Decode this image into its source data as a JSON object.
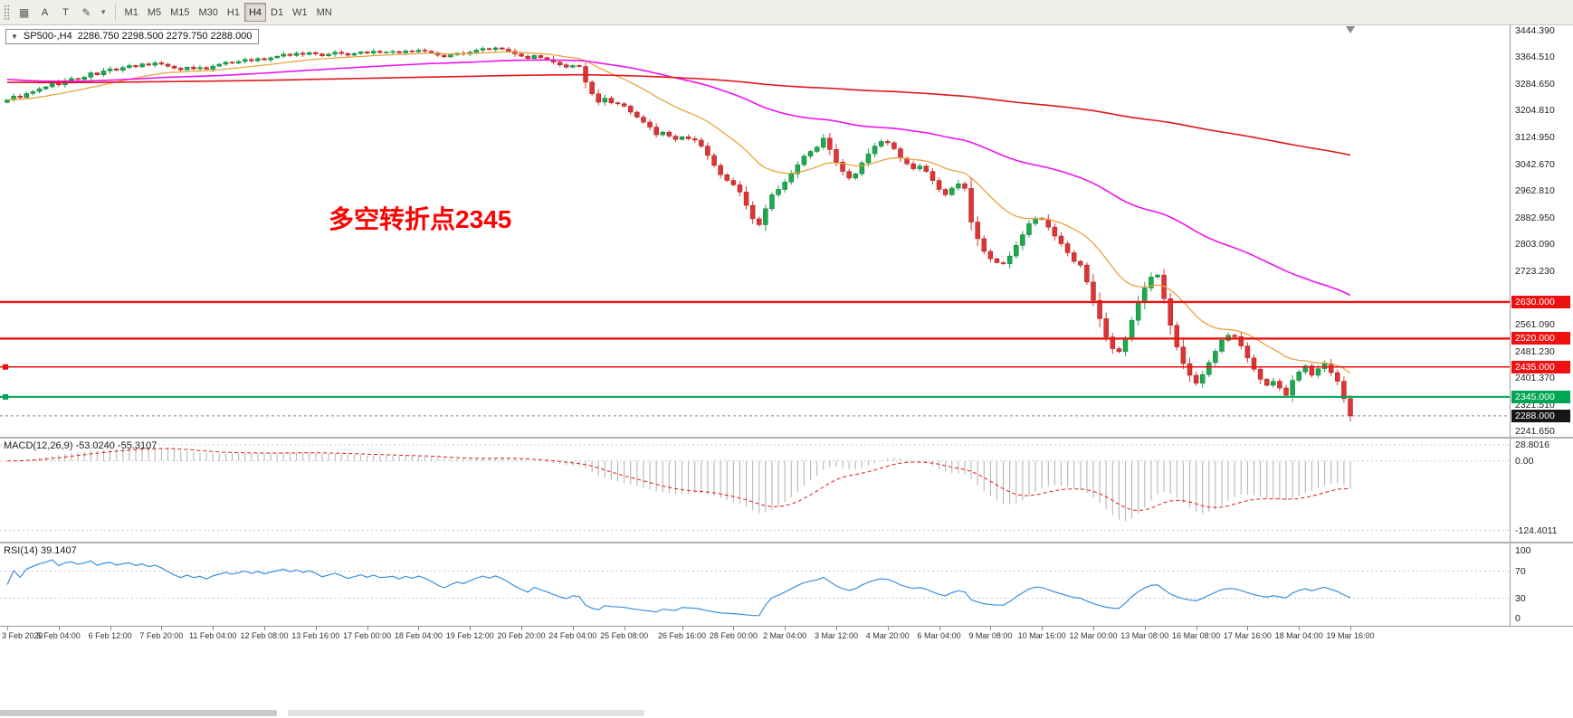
{
  "colors": {
    "up": "#1ea94f",
    "down": "#dd3434",
    "up_border": "#0c7a37",
    "down_border": "#a32222",
    "ma_fast": "#e8a33d",
    "ma_mid": "#f011f0",
    "ma_slow": "#e01818",
    "level_red": "#ee1111",
    "level_green": "#00a651",
    "current_tag_bg": "#161616",
    "macd_hist": "#b6b6b6",
    "macd_signal": "#e01818",
    "rsi_line": "#3c8fdd",
    "annotation": "#ff0000"
  },
  "toolbar": {
    "tools": {
      "a": "A",
      "t": "T"
    },
    "timeframes": [
      "M1",
      "M5",
      "M15",
      "M30",
      "H1",
      "H4",
      "D1",
      "W1",
      "MN"
    ],
    "active_timeframe": "H4"
  },
  "chart": {
    "symbol": "SP500-,H4",
    "ohlc": "2286.750 2298.500 2279.750 2288.000"
  },
  "chart_data": {
    "type": "candlestick",
    "title": "SP500- H4",
    "annotation": "多空转折点2345",
    "ylim": [
      2241.65,
      3444.39
    ],
    "y_axis_labels": [
      "3444.390",
      "3364.510",
      "3284.650",
      "3204.810",
      "3124.950",
      "3042.670",
      "2962.810",
      "2882.950",
      "2803.090",
      "2723.230",
      "2561.090",
      "2481.230",
      "2401.370",
      "2321.510",
      "2241.650"
    ],
    "levels": [
      {
        "price": 2630.0,
        "label": "2630.000",
        "style": "red",
        "width": 2.4,
        "handle": false
      },
      {
        "price": 2520.0,
        "label": "2520.000",
        "style": "red",
        "width": 2.4,
        "handle": false
      },
      {
        "price": 2435.0,
        "label": "2435.000",
        "style": "red",
        "width": 1.5,
        "handle": true
      },
      {
        "price": 2345.0,
        "label": "2345.000",
        "style": "green",
        "width": 2.0,
        "handle": true
      },
      {
        "price": 2288.0,
        "label": "2288.000",
        "style": "current",
        "width": 1.0,
        "handle": false
      }
    ],
    "closes": [
      3237,
      3248,
      3244,
      3256,
      3262,
      3270,
      3276,
      3288,
      3282,
      3295,
      3301,
      3298,
      3305,
      3318,
      3312,
      3324,
      3330,
      3326,
      3334,
      3340,
      3336,
      3345,
      3341,
      3348,
      3344,
      3338,
      3332,
      3327,
      3335,
      3330,
      3334,
      3329,
      3338,
      3344,
      3350,
      3347,
      3352,
      3358,
      3354,
      3361,
      3357,
      3363,
      3368,
      3374,
      3370,
      3377,
      3373,
      3379,
      3375,
      3369,
      3374,
      3380,
      3376,
      3371,
      3376,
      3381,
      3377,
      3383,
      3379,
      3380,
      3382,
      3378,
      3384,
      3381,
      3386,
      3383,
      3378,
      3371,
      3366,
      3372,
      3377,
      3374,
      3380,
      3386,
      3391,
      3388,
      3393,
      3389,
      3383,
      3375,
      3368,
      3361,
      3370,
      3364,
      3358,
      3350,
      3342,
      3335,
      3340,
      3337,
      3290,
      3255,
      3230,
      3242,
      3228,
      3225,
      3218,
      3200,
      3185,
      3170,
      3155,
      3132,
      3140,
      3128,
      3118,
      3126,
      3120,
      3116,
      3098,
      3070,
      3040,
      3012,
      2995,
      2982,
      2960,
      2920,
      2880,
      2862,
      2910,
      2952,
      2968,
      2990,
      3015,
      3042,
      3068,
      3082,
      3095,
      3122,
      3088,
      3050,
      3022,
      3002,
      3015,
      3048,
      3075,
      3098,
      3112,
      3108,
      3090,
      3062,
      3045,
      3030,
      3038,
      3022,
      2995,
      2968,
      2952,
      2972,
      2985,
      2971,
      2870,
      2820,
      2782,
      2760,
      2748,
      2745,
      2768,
      2800,
      2832,
      2865,
      2882,
      2878,
      2855,
      2828,
      2805,
      2778,
      2752,
      2741,
      2690,
      2635,
      2580,
      2525,
      2490,
      2481,
      2520,
      2575,
      2628,
      2672,
      2705,
      2711,
      2640,
      2560,
      2495,
      2445,
      2410,
      2386,
      2412,
      2448,
      2482,
      2515,
      2530,
      2526,
      2498,
      2462,
      2428,
      2398,
      2380,
      2392,
      2372,
      2350,
      2395,
      2420,
      2438,
      2410,
      2430,
      2445,
      2418,
      2392,
      2340,
      2288
    ],
    "moving_averages": [
      {
        "name": "fast",
        "period": 20,
        "color_key": "ma_fast"
      },
      {
        "name": "mid",
        "period": 80,
        "seed": 3300,
        "color_key": "ma_mid"
      },
      {
        "name": "slow",
        "period": 400,
        "seed": 3290,
        "color_key": "ma_slow"
      }
    ],
    "indicators": {
      "macd": {
        "label": "MACD(12,26,9) -53.0240 -55.3107",
        "fast": 12,
        "slow": 26,
        "signal": 9,
        "axis_labels": [
          "28.8016",
          "0.00",
          "-124.4011"
        ]
      },
      "rsi": {
        "label": "RSI(14) 39.1407",
        "period": 14,
        "value": 39.1407,
        "axis_labels": [
          "100",
          "70",
          "30",
          "0"
        ],
        "levels": [
          70,
          30
        ]
      }
    },
    "time_labels": [
      "3 Feb 2020",
      "5 Feb 04:00",
      "6 Feb 12:00",
      "7 Feb 20:00",
      "11 Feb 04:00",
      "12 Feb 08:00",
      "13 Feb 16:00",
      "17 Feb 00:00",
      "18 Feb 04:00",
      "19 Feb 12:00",
      "20 Feb 20:00",
      "24 Feb 04:00",
      "25 Feb 08:00",
      "26 Feb 16:00",
      "28 Feb 00:00",
      "2 Mar 04:00",
      "3 Mar 12:00",
      "4 Mar 20:00",
      "6 Mar 04:00",
      "9 Mar 08:00",
      "10 Mar 16:00",
      "12 Mar 00:00",
      "13 Mar 08:00",
      "16 Mar 08:00",
      "17 Mar 16:00",
      "18 Mar 04:00",
      "19 Mar 16:00"
    ]
  }
}
